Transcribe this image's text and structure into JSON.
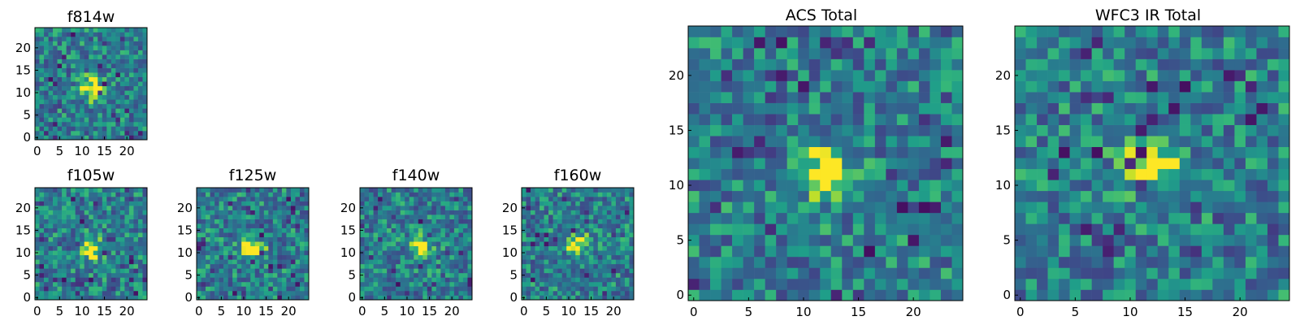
{
  "chart_data": [
    {
      "type": "heatmap",
      "title": "f814w",
      "grid_size": 25,
      "x_ticks": [
        "0",
        "5",
        "10",
        "15",
        "20"
      ],
      "y_ticks": [
        "0",
        "5",
        "10",
        "15",
        "20"
      ],
      "xlim": [
        -0.5,
        24.5
      ],
      "ylim": [
        -0.5,
        24.5
      ],
      "colormap": "viridis",
      "peak_location": [
        12,
        11
      ],
      "description_note": "noisy background with a bright compact source"
    },
    {
      "type": "heatmap",
      "title": "f105w",
      "grid_size": 25,
      "x_ticks": [
        "0",
        "5",
        "10",
        "15",
        "20"
      ],
      "y_ticks": [
        "0",
        "5",
        "10",
        "15",
        "20"
      ],
      "xlim": [
        -0.5,
        24.5
      ],
      "ylim": [
        -0.5,
        24.5
      ],
      "colormap": "viridis",
      "peak_location": [
        12,
        11
      ]
    },
    {
      "type": "heatmap",
      "title": "f125w",
      "grid_size": 25,
      "x_ticks": [
        "0",
        "5",
        "10",
        "15",
        "20"
      ],
      "y_ticks": [
        "0",
        "5",
        "10",
        "15",
        "20"
      ],
      "xlim": [
        -0.5,
        24.5
      ],
      "ylim": [
        -0.5,
        24.5
      ],
      "colormap": "viridis",
      "peak_location": [
        12,
        11
      ]
    },
    {
      "type": "heatmap",
      "title": "f140w",
      "grid_size": 25,
      "x_ticks": [
        "0",
        "5",
        "10",
        "15",
        "20"
      ],
      "y_ticks": [
        "0",
        "5",
        "10",
        "15",
        "20"
      ],
      "xlim": [
        -0.5,
        24.5
      ],
      "ylim": [
        -0.5,
        24.5
      ],
      "colormap": "viridis",
      "peak_location": [
        13,
        11
      ]
    },
    {
      "type": "heatmap",
      "title": "f160w",
      "grid_size": 25,
      "x_ticks": [
        "0",
        "5",
        "10",
        "15",
        "20"
      ],
      "y_ticks": [
        "0",
        "5",
        "10",
        "15",
        "20"
      ],
      "xlim": [
        -0.5,
        24.5
      ],
      "ylim": [
        -0.5,
        24.5
      ],
      "colormap": "viridis",
      "peak_location": [
        12,
        12
      ]
    },
    {
      "type": "heatmap",
      "title": "ACS Total",
      "grid_size": 25,
      "x_ticks": [
        "0",
        "5",
        "10",
        "15",
        "20"
      ],
      "y_ticks": [
        "0",
        "5",
        "10",
        "15",
        "20"
      ],
      "xlim": [
        -0.5,
        24.5
      ],
      "ylim": [
        -0.5,
        24.5
      ],
      "colormap": "viridis",
      "peak_location": [
        12,
        11
      ]
    },
    {
      "type": "heatmap",
      "title": "WFC3 IR Total",
      "grid_size": 25,
      "x_ticks": [
        "0",
        "5",
        "10",
        "15",
        "20"
      ],
      "y_ticks": [
        "0",
        "5",
        "10",
        "15",
        "20"
      ],
      "xlim": [
        -0.5,
        24.5
      ],
      "ylim": [
        -0.5,
        24.5
      ],
      "colormap": "viridis",
      "peak_location": [
        12,
        12
      ]
    }
  ],
  "colors": {
    "axis": "#000000",
    "background": "#ffffff"
  }
}
